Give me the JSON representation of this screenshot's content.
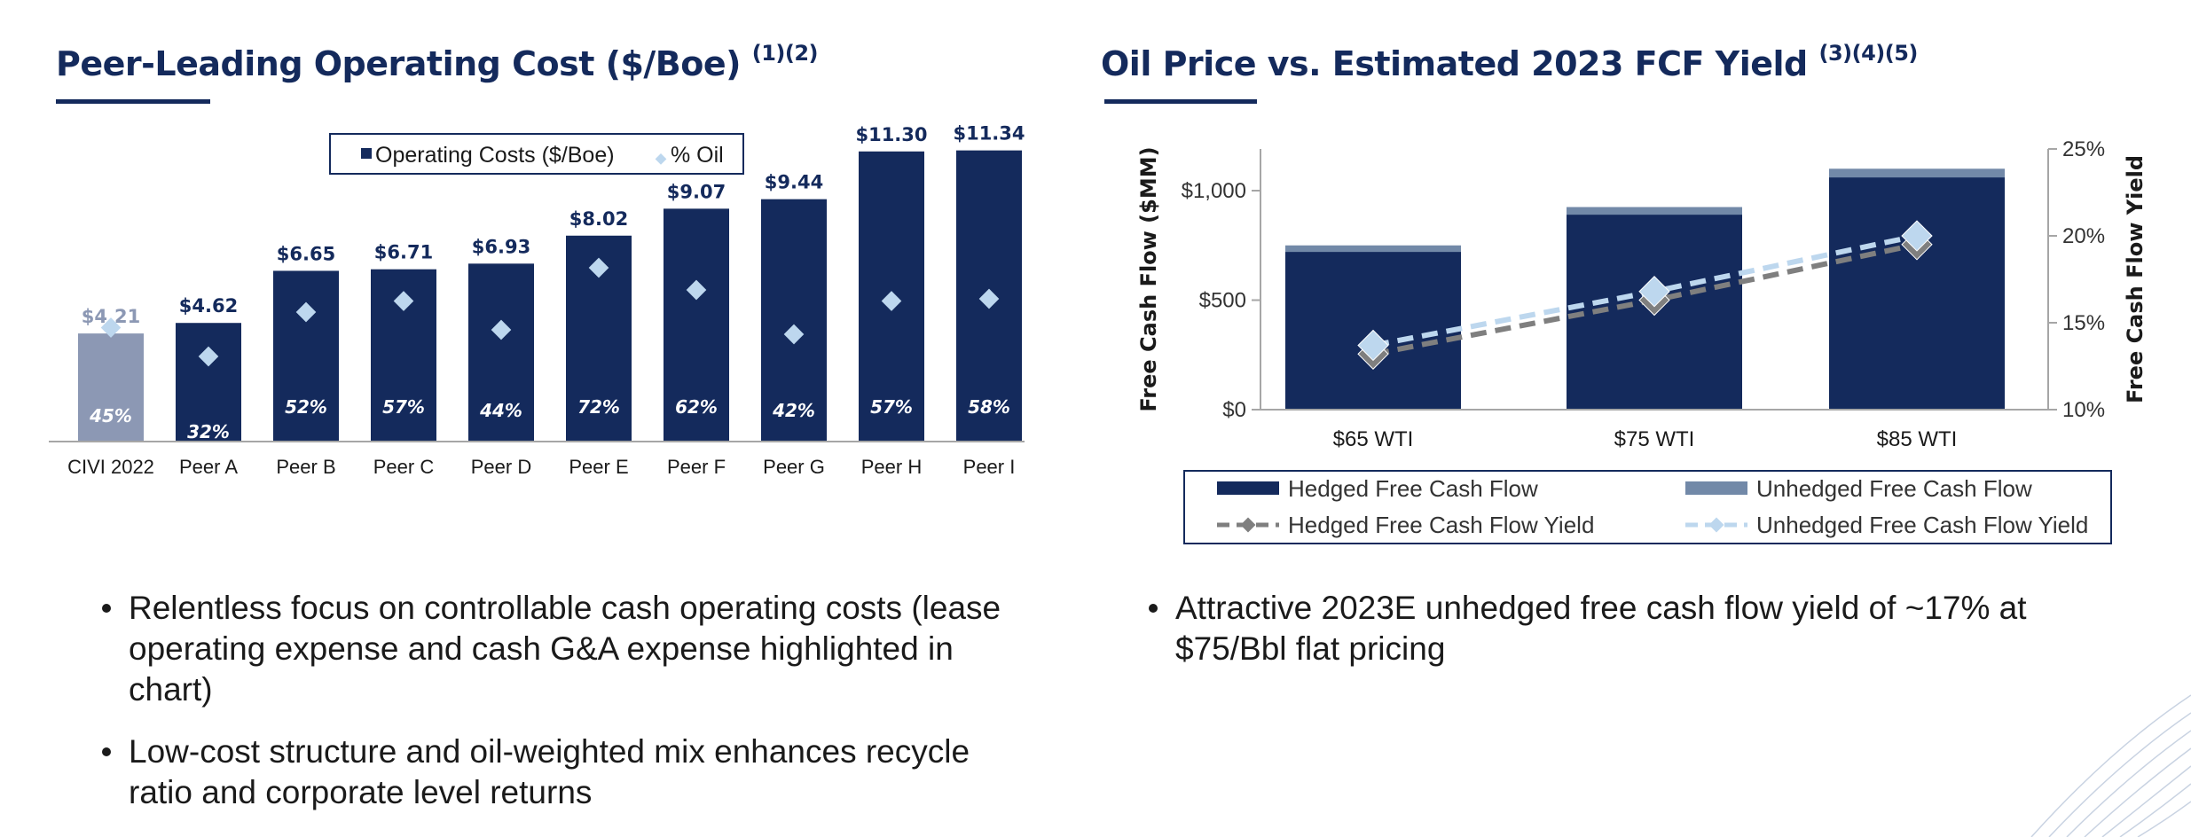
{
  "left_panel": {
    "title": "Peer-Leading Operating Cost ($/Boe)",
    "title_refs": "(1)(2)",
    "bullets": [
      "Relentless focus on controllable cash operating costs (lease operating expense and cash G&A expense highlighted in chart)",
      "Low-cost structure and oil-weighted mix enhances recycle ratio and corporate level returns"
    ]
  },
  "right_panel": {
    "title": "Oil Price vs. Estimated 2023 FCF Yield",
    "title_refs": "(3)(4)(5)",
    "bullets": [
      "Attractive 2023E unhedged free cash flow yield of ~17% at $75/Bbl flat pricing"
    ]
  },
  "colors": {
    "navy": "#142a5c",
    "civi_bar": "#8c98b4",
    "diamond": "#bdd7ee",
    "hedged_yield": "#7f7f7f",
    "unhedged_yield": "#bdd7ee",
    "unhedged_fcf": "#7289a8"
  },
  "chart_data": [
    {
      "type": "bar",
      "title": "Peer-Leading Operating Cost ($/Boe)",
      "categories": [
        "CIVI 2022",
        "Peer A",
        "Peer B",
        "Peer C",
        "Peer D",
        "Peer E",
        "Peer F",
        "Peer G",
        "Peer H",
        "Peer I"
      ],
      "series": [
        {
          "name": "Operating Costs ($/Boe)",
          "values": [
            4.21,
            4.62,
            6.65,
            6.71,
            6.93,
            8.02,
            9.07,
            9.44,
            11.3,
            11.34
          ],
          "labels": [
            "$4.21",
            "$4.62",
            "$6.65",
            "$6.71",
            "$6.93",
            "$8.02",
            "$9.07",
            "$9.44",
            "$11.30",
            "$11.34"
          ]
        },
        {
          "name": "% Oil",
          "values": [
            45,
            32,
            52,
            57,
            44,
            72,
            62,
            42,
            57,
            58
          ],
          "labels": [
            "45%",
            "32%",
            "52%",
            "57%",
            "44%",
            "72%",
            "62%",
            "42%",
            "57%",
            "58%"
          ]
        }
      ],
      "legend": [
        "Operating Costs ($/Boe)",
        "% Oil"
      ],
      "legend_position": "top-center",
      "ylim": [
        0,
        11.5
      ],
      "grid": false
    },
    {
      "type": "bar",
      "title": "Oil Price vs. Estimated 2023 FCF Yield",
      "categories": [
        "$65 WTI",
        "$75 WTI",
        "$85 WTI"
      ],
      "ylabel": "Free Cash Flow ($MM)",
      "y2label": "Free Cash Flow Yield",
      "y_ticks": [
        "$0",
        "$500",
        "$1,000"
      ],
      "y2_ticks": [
        "10%",
        "15%",
        "20%",
        "25%"
      ],
      "ylim": [
        0,
        1200
      ],
      "y2lim": [
        10,
        25
      ],
      "series": [
        {
          "name": "Hedged Free Cash Flow",
          "type": "bar",
          "values": [
            720,
            890,
            1060
          ]
        },
        {
          "name": "Unhedged Free Cash Flow",
          "type": "bar",
          "values": [
            750,
            925,
            1100
          ]
        },
        {
          "name": "Hedged Free Cash Flow Yield",
          "type": "line",
          "axis": "right",
          "values": [
            13.2,
            16.3,
            19.5
          ]
        },
        {
          "name": "Unhedged Free Cash Flow Yield",
          "type": "line",
          "axis": "right",
          "values": [
            13.7,
            16.8,
            20.0
          ]
        }
      ],
      "legend": [
        "Hedged Free Cash Flow",
        "Unhedged Free Cash Flow",
        "Hedged Free Cash Flow Yield",
        "Unhedged Free Cash Flow Yield"
      ],
      "legend_position": "bottom",
      "grid": false
    }
  ]
}
